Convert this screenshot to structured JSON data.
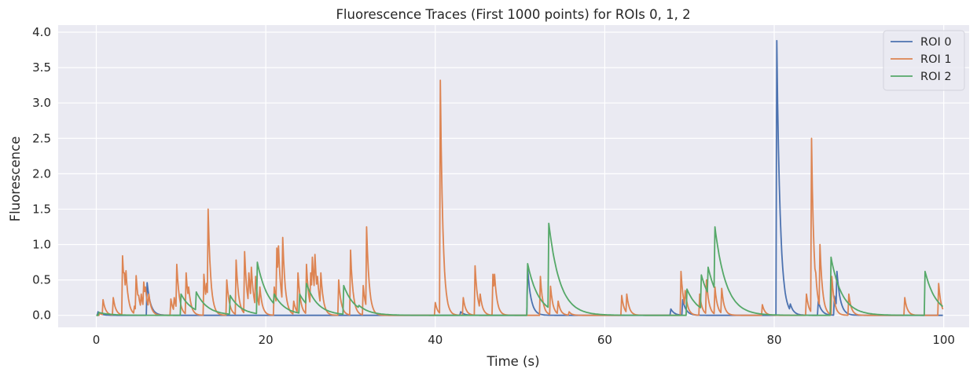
{
  "chart_data": {
    "type": "line",
    "title": "Fluorescence Traces (First 1000 points) for ROIs 0, 1, 2",
    "xlabel": "Time (s)",
    "ylabel": "Fluorescence",
    "xlim": [
      -4.5,
      103
    ],
    "ylim": [
      -0.17,
      4.1
    ],
    "xticks": [
      0,
      20,
      40,
      60,
      80,
      100
    ],
    "xtick_labels": [
      "0",
      "20",
      "40",
      "60",
      "80",
      "100"
    ],
    "yticks": [
      0.0,
      0.5,
      1.0,
      1.5,
      2.0,
      2.5,
      3.0,
      3.5,
      4.0
    ],
    "ytick_labels": [
      "0.0",
      "0.5",
      "1.0",
      "1.5",
      "2.0",
      "2.5",
      "3.0",
      "3.5",
      "4.0"
    ],
    "grid": true,
    "legend_position": "top-right",
    "series": [
      {
        "name": "ROI 0",
        "color": "#4C72B0",
        "decay": 0.4,
        "spikes": [
          [
            0.2,
            0.05
          ],
          [
            6.0,
            0.46
          ],
          [
            43.0,
            0.05
          ],
          [
            50.9,
            0.66
          ],
          [
            67.8,
            0.09
          ],
          [
            69.2,
            0.22
          ],
          [
            80.3,
            3.88
          ],
          [
            81.9,
            0.16
          ],
          [
            85.2,
            0.2
          ],
          [
            87.1,
            0.27
          ],
          [
            87.4,
            0.62
          ]
        ]
      },
      {
        "name": "ROI 1",
        "color": "#DD8452",
        "decay": 0.3,
        "spikes": [
          [
            0.4,
            0.03
          ],
          [
            0.8,
            0.22
          ],
          [
            2.0,
            0.25
          ],
          [
            3.1,
            0.84
          ],
          [
            3.3,
            0.6
          ],
          [
            3.5,
            0.63
          ],
          [
            4.5,
            0.13
          ],
          [
            4.7,
            0.56
          ],
          [
            5.0,
            0.28
          ],
          [
            5.3,
            0.3
          ],
          [
            5.6,
            0.47
          ],
          [
            5.8,
            0.4
          ],
          [
            6.2,
            0.3
          ],
          [
            8.8,
            0.23
          ],
          [
            9.2,
            0.25
          ],
          [
            9.5,
            0.72
          ],
          [
            10.6,
            0.6
          ],
          [
            10.9,
            0.4
          ],
          [
            12.7,
            0.58
          ],
          [
            13.0,
            0.45
          ],
          [
            13.2,
            1.5
          ],
          [
            15.4,
            0.5
          ],
          [
            16.5,
            0.78
          ],
          [
            17.5,
            0.9
          ],
          [
            18.0,
            0.6
          ],
          [
            18.3,
            0.68
          ],
          [
            18.8,
            0.55
          ],
          [
            19.3,
            0.4
          ],
          [
            21.0,
            0.4
          ],
          [
            21.3,
            0.95
          ],
          [
            21.5,
            0.98
          ],
          [
            22.0,
            1.1
          ],
          [
            23.3,
            0.2
          ],
          [
            23.8,
            0.6
          ],
          [
            24.8,
            0.72
          ],
          [
            25.3,
            0.6
          ],
          [
            25.5,
            0.82
          ],
          [
            25.8,
            0.86
          ],
          [
            26.1,
            0.55
          ],
          [
            26.5,
            0.6
          ],
          [
            28.6,
            0.5
          ],
          [
            30.0,
            0.92
          ],
          [
            31.5,
            0.42
          ],
          [
            31.9,
            1.25
          ],
          [
            40.0,
            0.18
          ],
          [
            40.6,
            3.32
          ],
          [
            43.3,
            0.25
          ],
          [
            44.7,
            0.7
          ],
          [
            45.3,
            0.3
          ],
          [
            46.8,
            0.58
          ],
          [
            47.0,
            0.58
          ],
          [
            52.4,
            0.55
          ],
          [
            53.6,
            0.41
          ],
          [
            54.5,
            0.2
          ],
          [
            55.8,
            0.05
          ],
          [
            62.0,
            0.28
          ],
          [
            62.6,
            0.3
          ],
          [
            69.0,
            0.62
          ],
          [
            69.5,
            0.35
          ],
          [
            71.2,
            0.3
          ],
          [
            72.0,
            0.5
          ],
          [
            73.0,
            0.4
          ],
          [
            73.8,
            0.38
          ],
          [
            78.6,
            0.15
          ],
          [
            83.8,
            0.3
          ],
          [
            84.4,
            2.5
          ],
          [
            84.9,
            0.6
          ],
          [
            85.4,
            1.0
          ],
          [
            86.8,
            0.55
          ],
          [
            88.8,
            0.3
          ],
          [
            95.4,
            0.25
          ],
          [
            99.4,
            0.45
          ]
        ]
      },
      {
        "name": "ROI 2",
        "color": "#55A868",
        "decay": 1.3,
        "spikes": [
          [
            0.3,
            0.04
          ],
          [
            10.0,
            0.3
          ],
          [
            11.8,
            0.33
          ],
          [
            15.8,
            0.28
          ],
          [
            19.0,
            0.75
          ],
          [
            21.0,
            0.3
          ],
          [
            24.0,
            0.3
          ],
          [
            24.8,
            0.45
          ],
          [
            29.2,
            0.42
          ],
          [
            31.0,
            0.14
          ],
          [
            50.9,
            0.73
          ],
          [
            53.4,
            1.3
          ],
          [
            69.7,
            0.37
          ],
          [
            71.4,
            0.57
          ],
          [
            72.2,
            0.68
          ],
          [
            73.0,
            1.25
          ],
          [
            86.7,
            0.82
          ],
          [
            97.8,
            0.62
          ]
        ]
      }
    ]
  }
}
